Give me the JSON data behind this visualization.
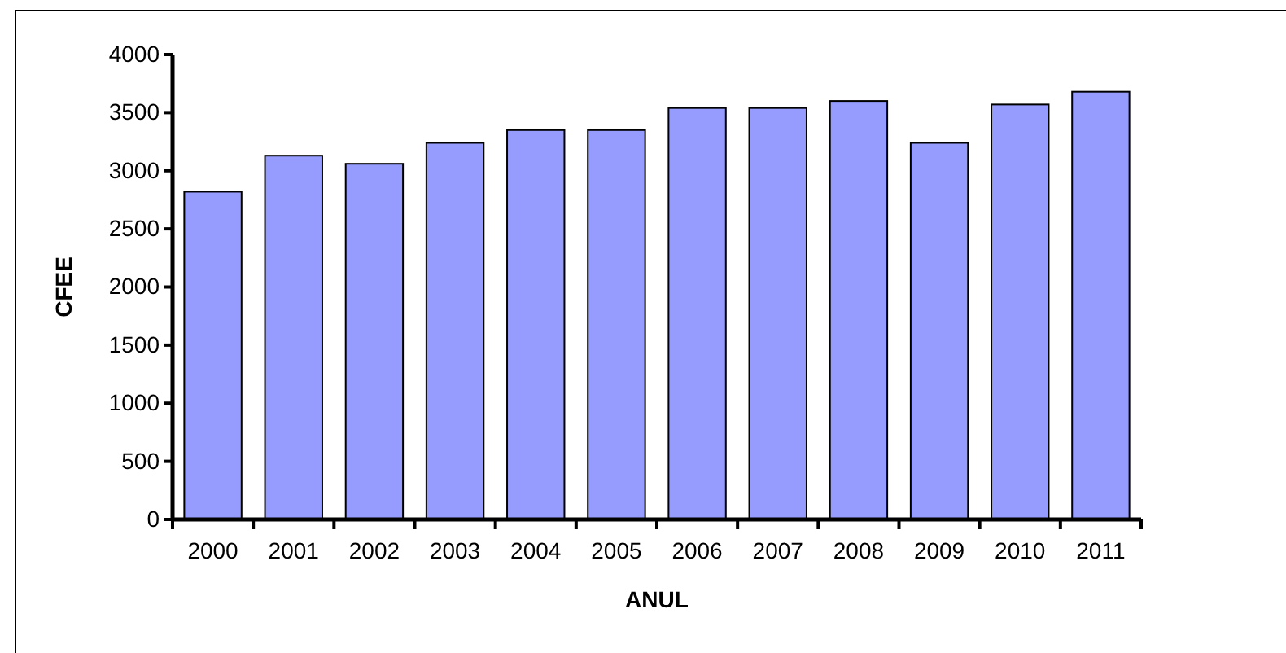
{
  "chart_data": {
    "type": "bar",
    "xlabel": "ANUL",
    "ylabel": "CFEE",
    "categories": [
      "2000",
      "2001",
      "2002",
      "2003",
      "2004",
      "2005",
      "2006",
      "2007",
      "2008",
      "2009",
      "2010",
      "2011"
    ],
    "values": [
      2820,
      3130,
      3060,
      3240,
      3350,
      3350,
      3540,
      3540,
      3600,
      3240,
      3570,
      3680
    ],
    "color": "#959cfd",
    "ylim": [
      0,
      4000
    ],
    "yticks": [
      0,
      500,
      1000,
      1500,
      2000,
      2500,
      3000,
      3500,
      4000
    ],
    "grid": false
  }
}
